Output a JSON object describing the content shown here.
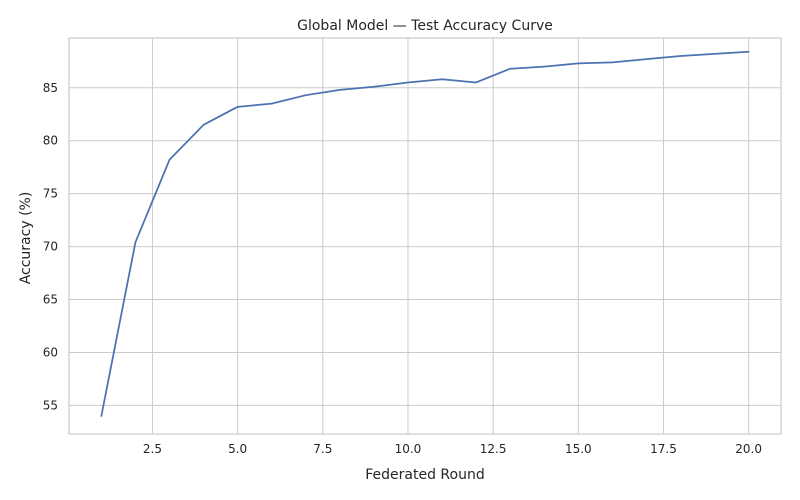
{
  "chart_data": {
    "type": "line",
    "title": "Global Model — Test Accuracy Curve",
    "xlabel": "Federated Round",
    "ylabel": "Accuracy (%)",
    "xlim": [
      0.05,
      20.95
    ],
    "ylim": [
      52.3,
      89.7
    ],
    "xticks": [
      2.5,
      5.0,
      7.5,
      10.0,
      12.5,
      15.0,
      17.5,
      20.0
    ],
    "xtick_labels": [
      "2.5",
      "5.0",
      "7.5",
      "10.0",
      "12.5",
      "15.0",
      "17.5",
      "20.0"
    ],
    "yticks": [
      55,
      60,
      65,
      70,
      75,
      80,
      85
    ],
    "ytick_labels": [
      "55",
      "60",
      "65",
      "70",
      "75",
      "80",
      "85"
    ],
    "grid": true,
    "legend": "none",
    "series": [
      {
        "color": "#4c72b0",
        "x": [
          1,
          2,
          3,
          4,
          5,
          6,
          7,
          8,
          9,
          10,
          11,
          12,
          13,
          14,
          15,
          16,
          17,
          18,
          19,
          20
        ],
        "y": [
          54.0,
          70.4,
          78.2,
          81.5,
          83.2,
          83.5,
          84.3,
          84.8,
          85.1,
          85.5,
          85.8,
          85.5,
          86.8,
          87.0,
          87.3,
          87.4,
          87.7,
          88.0,
          88.2,
          88.4
        ]
      }
    ]
  }
}
